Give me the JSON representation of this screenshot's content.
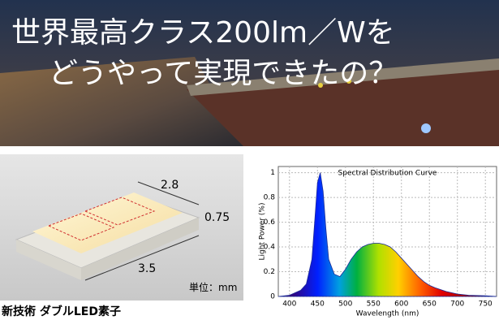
{
  "header": {
    "lines": [
      "世界最高クラス200lm／Wを",
      "どうやって実現できたの？"
    ]
  },
  "led": {
    "width": "2.8",
    "height": "0.75",
    "length": "3.5",
    "unit": "単位：mm",
    "caption": "新技術 ダブルLED素子"
  },
  "spectrum": {
    "type": "area",
    "title": "Spectral Distribution Curve",
    "x_label": "Wavelength (nm)",
    "y_label": "Light Power (%)",
    "x": [
      380,
      400,
      420,
      430,
      440,
      445,
      450,
      455,
      460,
      465,
      470,
      480,
      490,
      500,
      510,
      520,
      530,
      540,
      550,
      560,
      570,
      580,
      590,
      600,
      610,
      620,
      630,
      640,
      650,
      660,
      680,
      700,
      720,
      750,
      770
    ],
    "values": [
      0,
      0.01,
      0.05,
      0.1,
      0.3,
      0.6,
      0.92,
      1.0,
      0.85,
      0.55,
      0.3,
      0.18,
      0.16,
      0.22,
      0.3,
      0.36,
      0.4,
      0.42,
      0.43,
      0.43,
      0.42,
      0.4,
      0.36,
      0.31,
      0.26,
      0.21,
      0.16,
      0.12,
      0.09,
      0.07,
      0.04,
      0.02,
      0.01,
      0.005,
      0
    ],
    "xlim": [
      380,
      770
    ],
    "ylim": [
      0,
      1.05
    ],
    "xticks": [
      400,
      450,
      500,
      550,
      600,
      650,
      700,
      750
    ],
    "yticks": [
      0,
      0.2,
      0.4,
      0.6,
      0.8,
      1
    ],
    "grid": true
  }
}
